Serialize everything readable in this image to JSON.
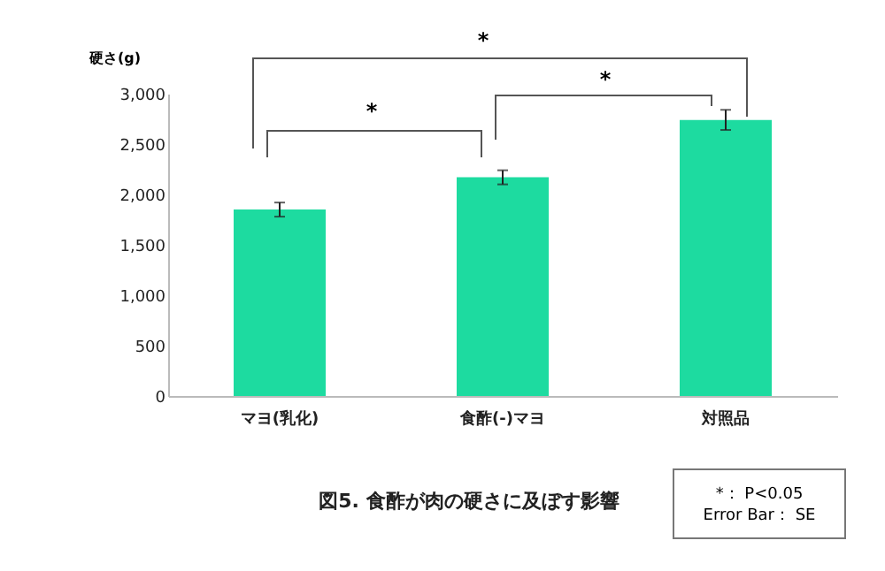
{
  "chart_data": {
    "type": "bar",
    "title": "図5. 食酢が肉の硬さに及ぼす影響",
    "ylabel": "硬さ(g)",
    "categories": [
      "マヨ(乳化)",
      "食酢(-)マヨ",
      "対照品"
    ],
    "values": [
      1850,
      2170,
      2740
    ],
    "errors": [
      70,
      70,
      100
    ],
    "color": "#1ddba0",
    "ylim": [
      0,
      3000
    ],
    "yticks": [
      0,
      {
        "value": 500,
        "label": "500"
      },
      {
        "value": 1000,
        "label": "1,000"
      },
      {
        "value": 1500,
        "label": "1,500"
      },
      {
        "value": 2000,
        "label": "2,000"
      },
      {
        "value": 2500,
        "label": "2,500"
      },
      {
        "value": 3000,
        "label": "3,000"
      }
    ],
    "grid": false,
    "annotations": [
      "*",
      "*",
      "*",
      "*： P<0.05",
      "Error Bar： SE"
    ]
  }
}
